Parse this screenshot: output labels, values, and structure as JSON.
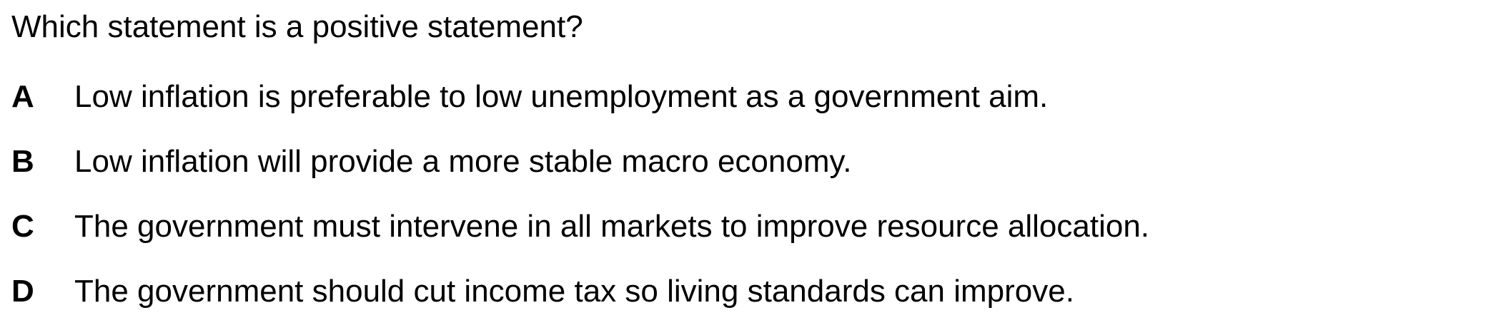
{
  "question": {
    "text": "Which statement is a positive statement?"
  },
  "options": [
    {
      "letter": "A",
      "text": "Low inflation is preferable to low unemployment as a government aim."
    },
    {
      "letter": "B",
      "text": "Low inflation will provide a more stable macro economy."
    },
    {
      "letter": "C",
      "text": "The government must intervene in all markets to improve resource allocation."
    },
    {
      "letter": "D",
      "text": "The government should cut income tax so living standards can improve."
    }
  ]
}
